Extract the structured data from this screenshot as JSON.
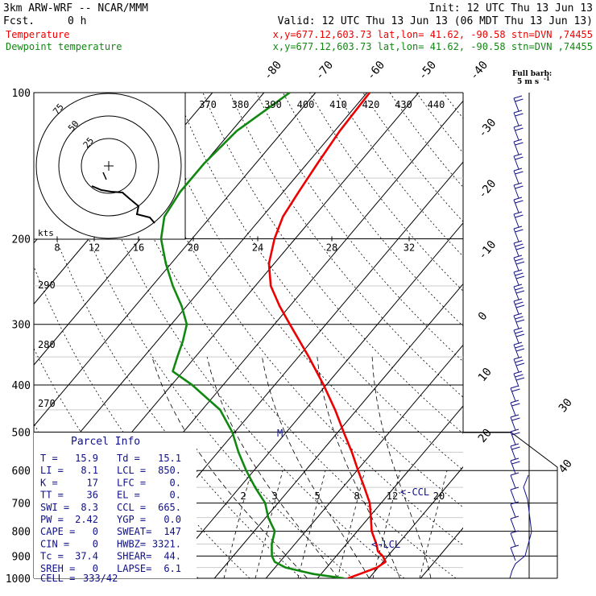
{
  "header": {
    "model": "3km ARW-WRF -- NCAR/MMM",
    "init": "Init: 12 UTC Thu 13 Jun 13",
    "fcst_label": "Fcst.",
    "fcst_value": "0 h",
    "valid": "Valid: 12 UTC Thu 13 Jun 13 (06 MDT Thu 13 Jun 13)",
    "temp_label": "Temperature",
    "temp_loc": "x,y=677.12,603.73   lat,lon= 41.62, -90.58  stn=DVN ,74455",
    "dew_label": "Dewpoint temperature",
    "dew_loc": "x,y=677.12,603.73   lat,lon= 41.62, -90.58  stn=DVN ,74455",
    "wind_legend_1": "Full barb:",
    "wind_legend_2": "5 m s",
    "wind_legend_exp": "-1"
  },
  "colors": {
    "temperature": "#ee0000",
    "dewpoint": "#118811",
    "barbs": "#101088",
    "parcel_text": "#101088",
    "grid": "#000000"
  },
  "chart_data": {
    "type": "line",
    "title": "3km ARW-WRF -- NCAR/MMM",
    "xlabel": "",
    "ylabel": "",
    "pressure_levels": [
      "100",
      "200",
      "300",
      "400",
      "500",
      "600",
      "700",
      "800",
      "900",
      "1000"
    ],
    "isotherm_labels": [
      "-80",
      "-70",
      "-60",
      "-50",
      "-40",
      "-30",
      "-20",
      "-10",
      "0",
      "10",
      "20",
      "30",
      "40"
    ],
    "theta_labels": [
      "370",
      "380",
      "390",
      "400",
      "410",
      "420",
      "430",
      "440"
    ],
    "theta_left_labels": [
      "290",
      "280",
      "270"
    ],
    "mixing_ratio_labels": [
      "2",
      "3",
      "5",
      "8",
      "12",
      "20"
    ],
    "hodograph_speed_labels": [
      "8",
      "12",
      "16",
      "20",
      "24",
      "28",
      "32"
    ],
    "hodograph_ring_labels": [
      "75",
      "50",
      "25"
    ],
    "hodograph_units": "kts",
    "annotations": [
      "CCL",
      "LCL",
      "M"
    ],
    "series": [
      {
        "name": "Temperature",
        "pressure": [
          1000,
          980,
          950,
          925,
          900,
          880,
          850,
          800,
          750,
          700,
          650,
          600,
          550,
          500,
          450,
          400,
          350,
          300,
          275,
          250,
          225,
          200,
          180,
          160,
          140,
          120,
          100
        ],
        "values": [
          15.9,
          17.5,
          19.8,
          20.5,
          19.0,
          17.3,
          15.8,
          12.8,
          10.4,
          7.8,
          4.2,
          0.2,
          -4.0,
          -8.9,
          -14.2,
          -20.5,
          -28.0,
          -37.0,
          -42.0,
          -47.0,
          -51.0,
          -54.0,
          -56.0,
          -57.0,
          -58.0,
          -59.0,
          -59.5
        ]
      },
      {
        "name": "Dewpoint temperature",
        "pressure": [
          1000,
          980,
          950,
          925,
          900,
          850,
          800,
          750,
          700,
          650,
          600,
          550,
          500,
          450,
          400,
          375,
          350,
          325,
          300,
          275,
          250,
          225,
          200,
          180,
          160,
          140,
          120,
          100
        ],
        "values": [
          15.1,
          8.5,
          2.0,
          -1.0,
          -2.5,
          -4.5,
          -6.0,
          -9.5,
          -12.5,
          -17.0,
          -21.5,
          -26.0,
          -30.5,
          -36.5,
          -46.0,
          -52.0,
          -53.5,
          -55.0,
          -57.0,
          -61.0,
          -66.0,
          -71.0,
          -76.0,
          -79.0,
          -80.0,
          -80.0,
          -79.0,
          -75.0
        ]
      }
    ],
    "wind_speed_units": "m/s"
  },
  "parcel_info": {
    "title": "Parcel Info",
    "rows": [
      {
        "l1": "T  =",
        "v1": "15.9",
        "l2": "Td =",
        "v2": "15.1"
      },
      {
        "l1": "LI =",
        "v1": "8.1",
        "l2": "LCL =",
        "v2": "850."
      },
      {
        "l1": "K  =",
        "v1": "17",
        "l2": "LFC =",
        "v2": "0."
      },
      {
        "l1": "TT =",
        "v1": "36",
        "l2": "EL  =",
        "v2": "0."
      },
      {
        "l1": "SWI =",
        "v1": "8.3",
        "l2": "CCL =",
        "v2": "665."
      },
      {
        "l1": "PW =",
        "v1": "2.42",
        "l2": "YGP =",
        "v2": "0.0"
      },
      {
        "l1": "CAPE =",
        "v1": "0",
        "l2": "SWEAT=",
        "v2": "147"
      },
      {
        "l1": "CIN =",
        "v1": "0",
        "l2": "HWBZ=",
        "v2": "3321."
      },
      {
        "l1": "Tc =",
        "v1": "37.4",
        "l2": "SHEAR=",
        "v2": "44."
      },
      {
        "l1": "SREH =",
        "v1": "0",
        "l2": "LAPSE=",
        "v2": "6.1"
      }
    ],
    "cell_label": "CELL =",
    "cell_value": "333/42"
  }
}
